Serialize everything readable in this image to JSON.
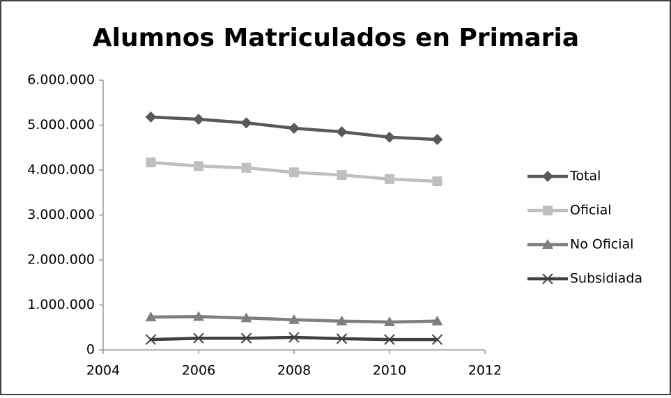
{
  "chart_data": {
    "type": "line",
    "title": "Alumnos Matriculados en Primaria",
    "x": [
      2005,
      2006,
      2007,
      2008,
      2009,
      2010,
      2011
    ],
    "xlim": [
      2004,
      2012
    ],
    "xticks": [
      2004,
      2006,
      2008,
      2010,
      2012
    ],
    "ylim": [
      0,
      6000000
    ],
    "yticks": [
      0,
      {
        "value": 1000000,
        "label": "1.000.000"
      },
      {
        "value": 2000000,
        "label": "2.000.000"
      },
      {
        "value": 3000000,
        "label": "3.000.000"
      },
      {
        "value": 4000000,
        "label": "4.000.000"
      },
      {
        "value": 5000000,
        "label": "5.000.000"
      },
      {
        "value": 6000000,
        "label": "6.000.000"
      }
    ],
    "grid": false,
    "legend": "right",
    "series": [
      {
        "name": "Total",
        "color": "#595959",
        "marker": "diamond",
        "values": [
          5180000,
          5130000,
          5050000,
          4930000,
          4850000,
          4730000,
          4680000
        ]
      },
      {
        "name": "Oficial",
        "color": "#bfbfbf",
        "marker": "square",
        "values": [
          4170000,
          4090000,
          4050000,
          3950000,
          3890000,
          3800000,
          3750000
        ]
      },
      {
        "name": "No Oficial",
        "color": "#7f7f7f",
        "marker": "triangle",
        "values": [
          730000,
          740000,
          710000,
          670000,
          640000,
          620000,
          640000
        ]
      },
      {
        "name": "Subsidiada",
        "color": "#404040",
        "marker": "x",
        "values": [
          230000,
          260000,
          260000,
          280000,
          250000,
          230000,
          230000
        ]
      }
    ]
  }
}
